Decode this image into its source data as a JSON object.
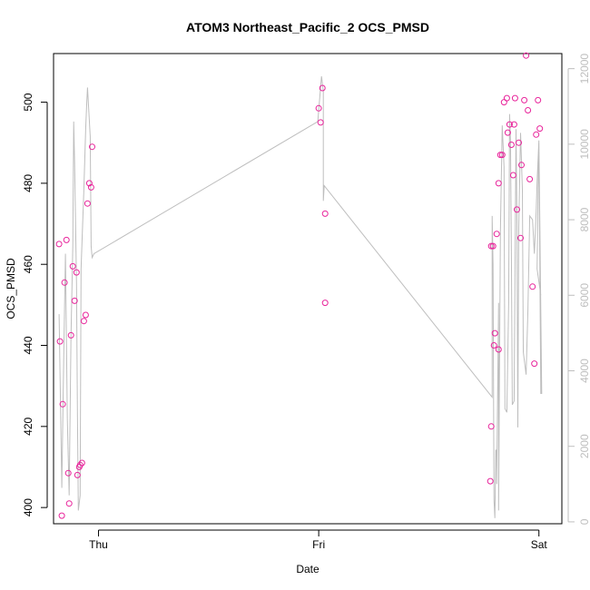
{
  "chart_data": {
    "type": "scatter",
    "title": "ATOM3 Northeast_Pacific_2 OCS_PMSD",
    "xlabel": "Date",
    "ylabel": "OCS_PMSD",
    "x_tick_labels": [
      "Thu",
      "Fri",
      "Sat"
    ],
    "x_ticks_hours": [
      0,
      24,
      48
    ],
    "xlim_hours": [
      -4.9,
      50.5
    ],
    "ylim": [
      396,
      512
    ],
    "y_ticks": [
      400,
      420,
      440,
      460,
      480,
      500
    ],
    "y2_ticks": [
      0,
      2000,
      4000,
      6000,
      8000,
      10000,
      12000
    ],
    "y2lim": [
      -50,
      12400
    ],
    "grid": false,
    "colors": {
      "points": "#e8249b",
      "line": "#bebebe",
      "right_axis": "#bebebe",
      "frame": "#000000"
    },
    "series": [
      {
        "kind": "points",
        "axis": "left",
        "x_hours": [
          -4.3,
          -4.2,
          -4.0,
          -3.9,
          -3.7,
          -3.5,
          -3.3,
          -3.2,
          -3.0,
          -2.8,
          -2.6,
          -2.4,
          -2.3,
          -2.1,
          -2.0,
          -1.8,
          -1.6,
          -1.4,
          -1.2,
          -1.0,
          -0.8,
          -0.7,
          24.0,
          24.2,
          24.4,
          24.7,
          24.7,
          42.7,
          42.8,
          42.8,
          43.0,
          43.1,
          43.2,
          43.4,
          43.6,
          43.6,
          43.8,
          44.0,
          44.2,
          44.5,
          44.6,
          44.8,
          45.0,
          45.2,
          45.3,
          45.4,
          45.6,
          45.8,
          46.0,
          46.1,
          46.4,
          46.6,
          46.8,
          47.0,
          47.3,
          47.5,
          47.7,
          47.9,
          48.1
        ],
        "y": [
          465,
          441,
          398,
          425.5,
          455.5,
          466,
          408.5,
          401,
          442.5,
          459.5,
          451,
          458,
          408,
          410,
          410.5,
          411,
          446,
          447.5,
          475,
          480,
          479,
          489,
          498.5,
          495,
          503.5,
          472.5,
          450.5,
          406.5,
          420,
          464.5,
          464.5,
          440,
          443,
          467.5,
          439,
          480,
          487,
          487,
          500,
          501,
          492.5,
          494.5,
          489.5,
          482,
          494.5,
          501,
          473.5,
          490,
          466.5,
          484.5,
          500.5,
          511.5,
          498,
          481,
          454.5,
          435.5,
          492,
          500.5,
          493.5
        ]
      },
      {
        "kind": "line",
        "axis": "right",
        "x_hours": [
          -4.3,
          -4.0,
          -3.8,
          -3.6,
          -3.4,
          -3.2,
          -3.0,
          -2.8,
          -2.7,
          -2.6,
          -2.4,
          -2.3,
          -2.2,
          -2.0,
          -1.9,
          -1.6,
          -1.4,
          -1.3,
          -1.2,
          -0.9,
          -0.8,
          -0.7,
          -0.5,
          23.9,
          24.3,
          24.5,
          24.5,
          24.6,
          42.9,
          42.9,
          43.0,
          43.1,
          43.2,
          43.3,
          43.4,
          43.4,
          43.6,
          43.6,
          43.8,
          44.0,
          44.2,
          44.3,
          44.5,
          44.7,
          44.8,
          44.9,
          45.0,
          45.1,
          45.3,
          45.5,
          45.6,
          45.7,
          45.8,
          46.0,
          46.2,
          46.3,
          46.6,
          46.8,
          47.0,
          47.3,
          47.5,
          47.7,
          47.8,
          47.8,
          48.0,
          48.2,
          48.3,
          48.0,
          47.8,
          48.2
        ],
        "y": [
          5500,
          900,
          4200,
          7100,
          2700,
          700,
          4900,
          7300,
          10600,
          9500,
          6300,
          2900,
          300,
          700,
          6700,
          8800,
          10400,
          11000,
          11500,
          10200,
          7300,
          7000,
          7100,
          10600,
          11800,
          11400,
          8500,
          8900,
          3300,
          8100,
          6800,
          600,
          100,
          1900,
          1900,
          1000,
          5800,
          300,
          7700,
          10500,
          9400,
          3000,
          2900,
          5800,
          10800,
          10100,
          7100,
          3100,
          3200,
          10400,
          8000,
          2500,
          7800,
          10300,
          8800,
          4500,
          3900,
          5600,
          8100,
          8000,
          7100,
          8200,
          9000,
          9000,
          10100,
          3400,
          3400,
          10100,
          6700,
          6000
        ]
      }
    ]
  }
}
